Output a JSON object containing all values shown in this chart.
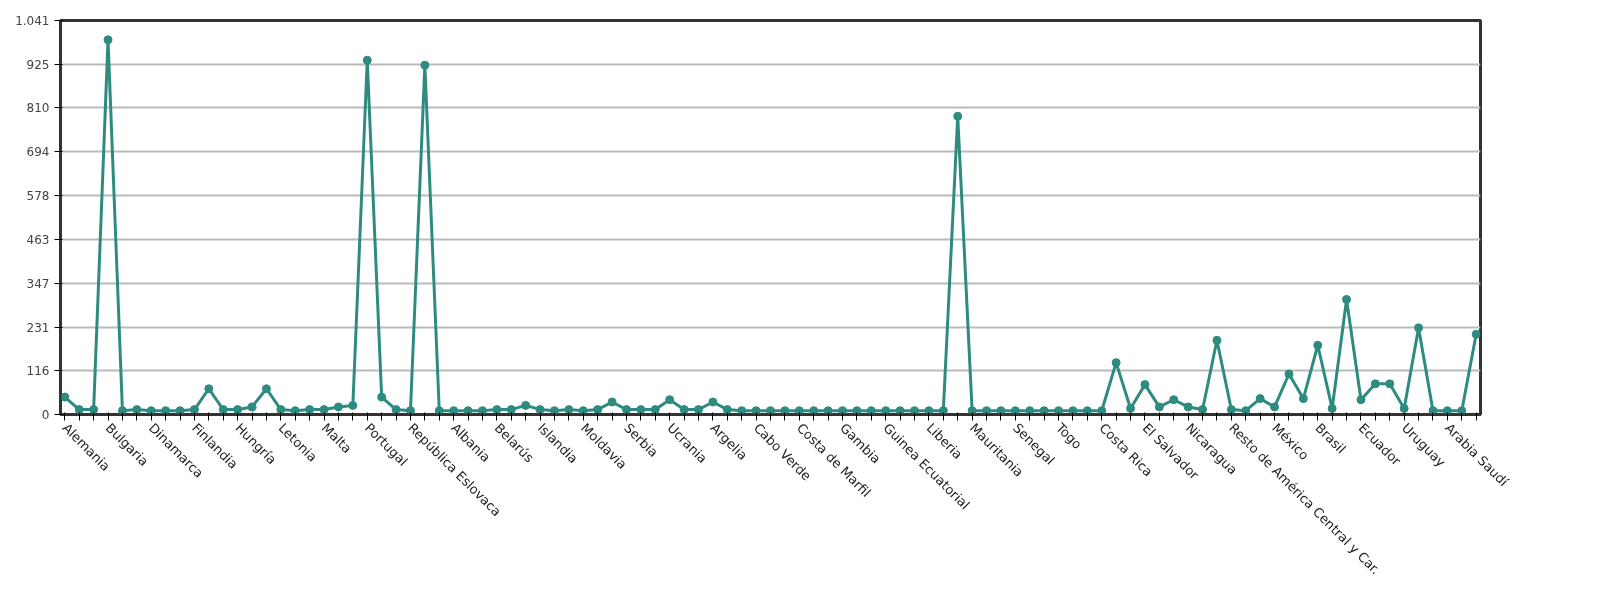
{
  "chart_data": {
    "type": "line",
    "categories": [
      "Alemania",
      null,
      null,
      "Bulgaria",
      null,
      null,
      "Dinamarca",
      null,
      null,
      "Finlandia",
      null,
      null,
      "Hungría",
      null,
      null,
      "Letonia",
      null,
      null,
      "Malta",
      null,
      null,
      "Portugal",
      null,
      null,
      "República Eslovaca",
      null,
      null,
      "Albania",
      null,
      null,
      "Belarús",
      null,
      null,
      "Islandia",
      null,
      null,
      "Moldavia",
      null,
      null,
      "Serbia",
      null,
      null,
      "Ucrania",
      null,
      null,
      "Argelia",
      null,
      null,
      "Cabo Verde",
      null,
      null,
      "Costa de Marfil",
      null,
      null,
      "Gambia",
      null,
      null,
      "Guinea Ecuatorial",
      null,
      null,
      "Liberia",
      null,
      null,
      "Mauritania",
      null,
      null,
      "Senegal",
      null,
      null,
      "Togo",
      null,
      null,
      "Costa Rica",
      null,
      null,
      "El Salvador",
      null,
      null,
      "Nicaragua",
      null,
      null,
      "Resto de América Central y Car.",
      null,
      null,
      "México",
      null,
      null,
      "Brasil",
      null,
      null,
      "Ecuador",
      null,
      null,
      "Uruguay",
      null,
      null,
      "Arabia Saudí",
      null,
      null
    ],
    "series": [
      {
        "color": "#2e8b80",
        "values": [
          46,
          13,
          13,
          990,
          10,
          13,
          10,
          10,
          10,
          13,
          68,
          13,
          13,
          20,
          68,
          13,
          10,
          13,
          13,
          20,
          24,
          936,
          46,
          13,
          10,
          923,
          10,
          10,
          10,
          10,
          13,
          13,
          24,
          13,
          10,
          13,
          10,
          13,
          33,
          13,
          13,
          13,
          39,
          13,
          13,
          33,
          13,
          10,
          10,
          10,
          10,
          10,
          10,
          10,
          10,
          10,
          10,
          10,
          10,
          10,
          10,
          10,
          788,
          10,
          10,
          10,
          10,
          10,
          10,
          10,
          10,
          10,
          10,
          137,
          16,
          79,
          20,
          39,
          20,
          13,
          196,
          13,
          10,
          42,
          20,
          107,
          42,
          183,
          16,
          304,
          39,
          81,
          81,
          16,
          229,
          10,
          10,
          10,
          212
        ]
      }
    ],
    "ylim": [
      0,
      1041
    ],
    "yticks": [
      0,
      116,
      231,
      347,
      463,
      578,
      694,
      810,
      925,
      {
        "value": 1041,
        "label": "1.041"
      }
    ],
    "grid": "y",
    "marker": "circle",
    "line_style": "solid"
  }
}
